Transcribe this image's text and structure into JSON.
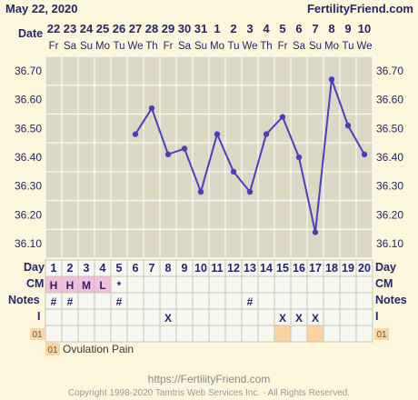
{
  "header": {
    "date": "May 22, 2020",
    "site": "FertilityFriend.com",
    "date_row_label": "Date"
  },
  "chart_data": {
    "type": "line",
    "x": [
      "22",
      "23",
      "24",
      "25",
      "26",
      "27",
      "28",
      "29",
      "30",
      "31",
      "1",
      "2",
      "3",
      "4",
      "5",
      "6",
      "7",
      "8",
      "9",
      "10"
    ],
    "weekdays": [
      "Fr",
      "Sa",
      "Su",
      "Mo",
      "Tu",
      "We",
      "Th",
      "Fr",
      "Sa",
      "Su",
      "Mo",
      "Tu",
      "We",
      "Th",
      "Fr",
      "Sa",
      "Su",
      "Mo",
      "Tu",
      "We"
    ],
    "cycle_days": [
      "1",
      "2",
      "3",
      "4",
      "5",
      "6",
      "7",
      "8",
      "9",
      "10",
      "11",
      "12",
      "13",
      "14",
      "15",
      "16",
      "17",
      "18",
      "19",
      "20"
    ],
    "y_ticks": [
      "36.70",
      "36.60",
      "36.50",
      "36.40",
      "36.30",
      "36.20",
      "36.10"
    ],
    "ylim": [
      36.05,
      36.75
    ],
    "series": [
      {
        "color": "#4a3fbf",
        "values": [
          null,
          null,
          null,
          null,
          null,
          36.48,
          36.57,
          36.41,
          36.43,
          36.28,
          36.48,
          36.35,
          36.28,
          36.48,
          36.54,
          36.4,
          36.14,
          36.67,
          36.51,
          36.41
        ]
      }
    ],
    "grid": true
  },
  "rows": {
    "day_label": "Day",
    "cm_label": "CM",
    "notes_label": "Notes",
    "i_label": "I",
    "cm_values": [
      "H",
      "H",
      "M",
      "L",
      "*",
      "",
      "",
      "",
      "",
      "",
      "",
      "",
      "",
      "",
      "",
      "",
      "",
      "",
      "",
      ""
    ],
    "notes_values": [
      "#",
      "#",
      "",
      "",
      "#",
      "",
      "",
      "",
      "",
      "",
      "",
      "",
      "#",
      "",
      "",
      "",
      "",
      "",
      "",
      ""
    ],
    "i_values": [
      "",
      "",
      "",
      "",
      "",
      "",
      "",
      "X",
      "",
      "",
      "",
      "",
      "",
      "",
      "X",
      "X",
      "X",
      "",
      "",
      ""
    ],
    "code_row": [
      "",
      "",
      "",
      "",
      "",
      "",
      "",
      "",
      "",
      "",
      "",
      "",
      "",
      "",
      "1",
      "",
      "1",
      "",
      "",
      ""
    ],
    "code_label": "01"
  },
  "colors": {
    "background": "#fcf6dc",
    "grid": "#ffffff",
    "plot": "#ddd8c4",
    "line": "#4a3fbf",
    "cm_fill": "#f4bfdc",
    "code_fill": "#fbd4a4"
  },
  "legend": {
    "code": "01",
    "text": "Ovulation Pain"
  },
  "footer": {
    "url": "https://FertilityFriend.com",
    "copyright": "Copyright 1998-2020 Tamtris Web Services Inc. - All Rights Reserved."
  }
}
